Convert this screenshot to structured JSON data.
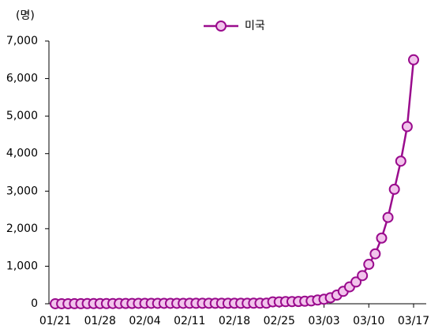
{
  "chart_data": {
    "type": "line",
    "y_label": "(명)",
    "categories": [
      "01/21",
      null,
      null,
      null,
      null,
      null,
      null,
      "01/28",
      null,
      null,
      null,
      null,
      null,
      null,
      "02/04",
      null,
      null,
      null,
      null,
      null,
      null,
      "02/11",
      null,
      null,
      null,
      null,
      null,
      null,
      "02/18",
      null,
      null,
      null,
      null,
      null,
      null,
      "02/25",
      null,
      null,
      null,
      null,
      null,
      null,
      "03/03",
      null,
      null,
      null,
      null,
      null,
      null,
      "03/10",
      null,
      null,
      null,
      null,
      null,
      null,
      "03/17"
    ],
    "series": [
      {
        "name": "미국",
        "color": "#9a0b8d",
        "marker_fill": "#f2c4ec",
        "values": [
          1,
          1,
          1,
          2,
          2,
          5,
          5,
          5,
          5,
          6,
          7,
          8,
          8,
          11,
          11,
          11,
          11,
          11,
          11,
          11,
          11,
          12,
          12,
          13,
          13,
          13,
          13,
          13,
          13,
          13,
          13,
          15,
          15,
          15,
          51,
          51,
          57,
          58,
          60,
          68,
          75,
          100,
          120,
          160,
          230,
          330,
          450,
          580,
          750,
          1050,
          1330,
          1750,
          2300,
          3050,
          3800,
          4720,
          6500
        ]
      }
    ],
    "ylim": [
      0,
      7000
    ],
    "yticks": [
      0,
      {
        "value": 1000,
        "label": "1,000"
      },
      {
        "value": 2000,
        "label": "2,000"
      },
      {
        "value": 3000,
        "label": "3,000"
      },
      {
        "value": 4000,
        "label": "4,000"
      },
      {
        "value": 5000,
        "label": "5,000"
      },
      {
        "value": 6000,
        "label": "6,000"
      },
      {
        "value": 7000,
        "label": "7,000"
      }
    ],
    "grid": false,
    "legend": "top"
  }
}
